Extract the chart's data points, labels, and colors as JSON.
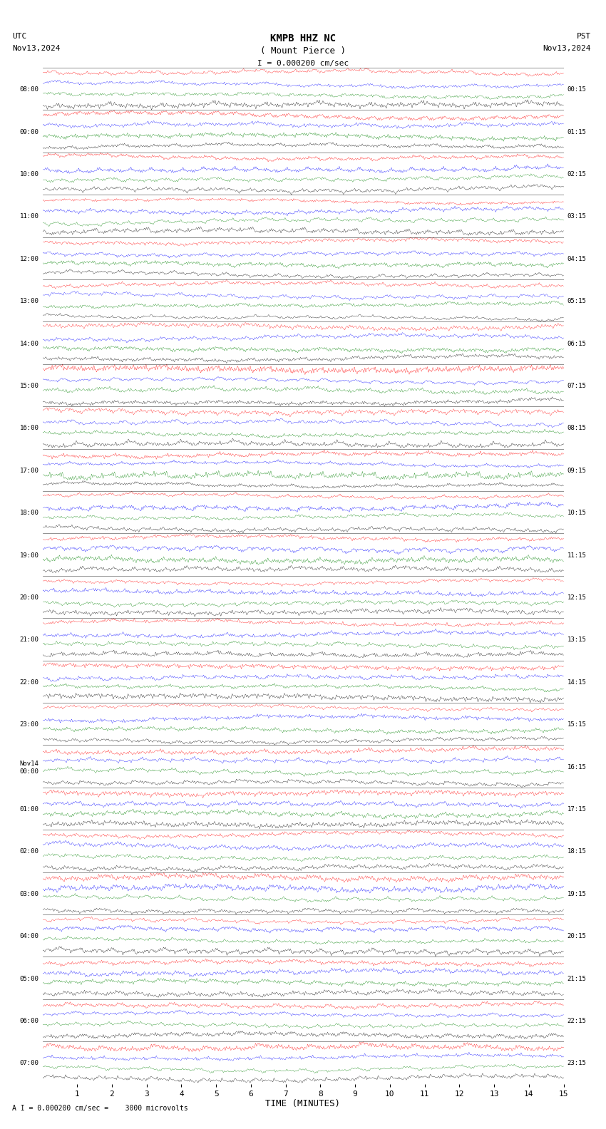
{
  "title_line1": "KMPB HHZ NC",
  "title_line2": "( Mount Pierce )",
  "scale_label": "I = 0.000200 cm/sec",
  "left_label_top": "UTC",
  "left_label_date": "Nov13,2024",
  "right_label_top": "PST",
  "right_label_date": "Nov13,2024",
  "bottom_label": "TIME (MINUTES)",
  "bottom_note": "A I = 0.000200 cm/sec =    3000 microvolts",
  "left_times": [
    "08:00",
    "09:00",
    "10:00",
    "11:00",
    "12:00",
    "13:00",
    "14:00",
    "15:00",
    "16:00",
    "17:00",
    "18:00",
    "19:00",
    "20:00",
    "21:00",
    "22:00",
    "23:00",
    "Nov14\n00:00",
    "01:00",
    "02:00",
    "03:00",
    "04:00",
    "05:00",
    "06:00",
    "07:00"
  ],
  "right_times": [
    "00:15",
    "01:15",
    "02:15",
    "03:15",
    "04:15",
    "05:15",
    "06:15",
    "07:15",
    "08:15",
    "09:15",
    "10:15",
    "11:15",
    "12:15",
    "13:15",
    "14:15",
    "15:15",
    "16:15",
    "17:15",
    "18:15",
    "19:15",
    "20:15",
    "21:15",
    "22:15",
    "23:15"
  ],
  "x_ticks": [
    1,
    2,
    3,
    4,
    5,
    6,
    7,
    8,
    9,
    10,
    11,
    12,
    13,
    14,
    15
  ],
  "n_rows": 24,
  "n_points": 8000,
  "colors": [
    "red",
    "blue",
    "green",
    "black"
  ],
  "bg_color": "white",
  "fig_width": 8.5,
  "fig_height": 15.84,
  "dpi": 100
}
